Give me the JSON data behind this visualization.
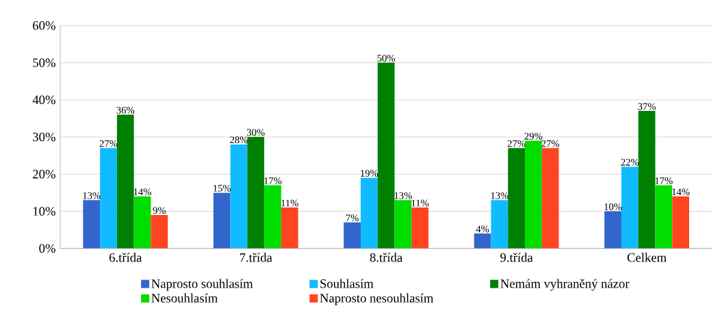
{
  "chart_data": {
    "type": "bar",
    "categories": [
      "6.třída",
      "7.třída",
      "8.třída",
      "9.třída",
      "Celkem"
    ],
    "series": [
      {
        "name": "Naprosto souhlasím",
        "color": "#3366cc",
        "values": [
          13,
          15,
          7,
          4,
          10
        ],
        "value_labels": [
          "13%",
          "15%",
          "7%",
          "4%",
          "10%"
        ]
      },
      {
        "name": "Souhlasím",
        "color": "#11bbff",
        "values": [
          27,
          28,
          19,
          13,
          22
        ],
        "value_labels": [
          "27%",
          "28%",
          "19%",
          "13%",
          "22%"
        ]
      },
      {
        "name": "Nemám vyhraněný názor",
        "color": "#008000",
        "values": [
          36,
          30,
          50,
          27,
          37
        ],
        "value_labels": [
          "36%",
          "30%",
          "50%",
          "27%",
          "37%"
        ]
      },
      {
        "name": "Nesouhlasím",
        "color": "#00dd00",
        "values": [
          14,
          17,
          13,
          29,
          17
        ],
        "value_labels": [
          "14%",
          "17%",
          "13%",
          "29%",
          "17%"
        ]
      },
      {
        "name": "Naprosto nesouhlasím",
        "color": "#ff4422",
        "values": [
          9,
          11,
          11,
          27,
          14
        ],
        "value_labels": [
          "9%",
          "11%",
          "11%",
          "27%",
          "14%"
        ]
      }
    ],
    "ylim": [
      0,
      60
    ],
    "yticks": [
      {
        "value": 0,
        "label": "0%"
      },
      {
        "value": 10,
        "label": "10%"
      },
      {
        "value": 20,
        "label": "20%"
      },
      {
        "value": 30,
        "label": "30%"
      },
      {
        "value": 40,
        "label": "40%"
      },
      {
        "value": 50,
        "label": "50%"
      },
      {
        "value": 60,
        "label": "60%"
      }
    ],
    "grid": "y",
    "legend": "bottom"
  }
}
